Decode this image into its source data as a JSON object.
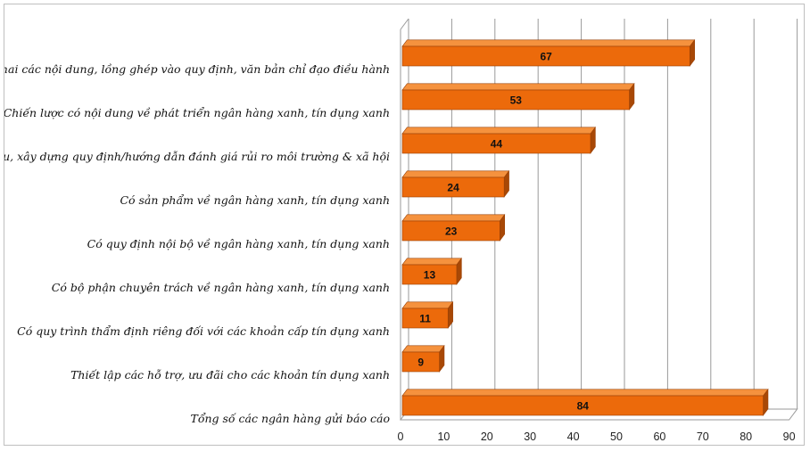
{
  "chart_data": {
    "type": "bar",
    "orientation": "horizontal",
    "categories": [
      "Triển khai các nội dung, lồng ghép vào quy định, văn bản chỉ đạo điều hành",
      "Chiến lược có nội dung về phát triển ngân hàng xanh, tín dụng xanh",
      "Nghiên cứu, xây dựng quy định/hướng dẫn đánh giá rủi ro môi trường & xã hội",
      "Có sản phẩm về ngân hàng xanh, tín dụng xanh",
      "Có quy định nội bộ về ngân hàng xanh, tín dụng xanh",
      "Có bộ phận chuyên trách về ngân hàng xanh, tín dụng xanh",
      "Có quy trình thẩm định riêng đối với các khoản cấp tín dụng xanh",
      "Thiết lập các hỗ trợ, ưu đãi cho các khoản tín dụng xanh",
      "Tổng số các ngân hàng gửi báo cáo"
    ],
    "values": [
      67,
      53,
      44,
      24,
      23,
      13,
      11,
      9,
      84
    ],
    "xlim": [
      0,
      90
    ],
    "ticks": [
      "0",
      "10",
      "20",
      "30",
      "40",
      "50",
      "60",
      "70",
      "80",
      "90"
    ],
    "grid": true,
    "legend": "none",
    "style": "3d",
    "colors": {
      "bar_front": "#ec6a0b",
      "bar_top": "#f5923e",
      "bar_side": "#a84806",
      "bar_outline": "#9a4005",
      "grid": "#9a9a9a",
      "wall": "#ffffff"
    }
  }
}
